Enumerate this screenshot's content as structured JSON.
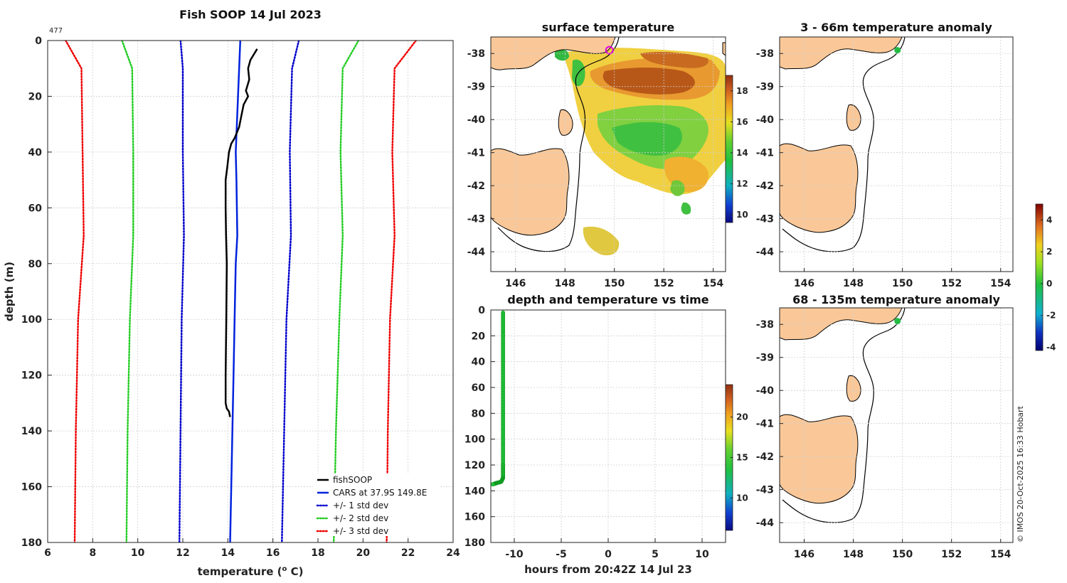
{
  "figure": {
    "credit": "© IMOS 20-Oct-2025 16:33 Hobart"
  },
  "chart_data": [
    {
      "id": "profile",
      "type": "line",
      "title": "Fish SOOP 14 Jul 2023",
      "annotation": "477",
      "xlabel": "temperature (° C)",
      "xlabel_main": "temperature (",
      "xlabel_sup": "o",
      "xlabel_end": " C)",
      "ylabel": "depth (m)",
      "xlim": [
        6,
        24
      ],
      "ylim": [
        0,
        180
      ],
      "y_reversed": true,
      "xticks": [
        "6",
        "8",
        "10",
        "12",
        "14",
        "16",
        "18",
        "20",
        "22",
        "24"
      ],
      "yticks": [
        "0",
        "20",
        "40",
        "60",
        "80",
        "100",
        "120",
        "140",
        "160",
        "180"
      ],
      "grid": true,
      "legend_position": "bottom-right",
      "series": [
        {
          "name": "fishSOOP",
          "color": "#000000",
          "style": "solid",
          "width": 2.5,
          "points": [
            [
              15.3,
              3
            ],
            [
              15.0,
              7
            ],
            [
              14.9,
              10
            ],
            [
              14.95,
              14
            ],
            [
              14.8,
              18
            ],
            [
              14.9,
              20
            ],
            [
              14.7,
              23
            ],
            [
              14.6,
              27
            ],
            [
              14.5,
              31
            ],
            [
              14.3,
              35
            ],
            [
              14.15,
              37
            ],
            [
              14.05,
              40
            ],
            [
              13.98,
              45
            ],
            [
              13.9,
              50
            ],
            [
              13.9,
              60
            ],
            [
              13.92,
              70
            ],
            [
              13.95,
              80
            ],
            [
              13.93,
              100
            ],
            [
              13.9,
              120
            ],
            [
              13.9,
              130
            ],
            [
              13.95,
              132
            ],
            [
              14.05,
              133
            ],
            [
              14.1,
              135
            ]
          ]
        },
        {
          "name": "CARS at 37.9S 149.8E",
          "color": "#0022dd",
          "style": "solid",
          "width": 2.5,
          "points": [
            [
              14.55,
              0
            ],
            [
              14.5,
              10
            ],
            [
              14.45,
              20
            ],
            [
              14.4,
              30
            ],
            [
              14.35,
              40
            ],
            [
              14.38,
              50
            ],
            [
              14.4,
              60
            ],
            [
              14.42,
              70
            ],
            [
              14.35,
              80
            ],
            [
              14.3,
              100
            ],
            [
              14.25,
              120
            ],
            [
              14.2,
              140
            ],
            [
              14.15,
              160
            ],
            [
              14.1,
              180
            ]
          ]
        },
        {
          "name": "+/- 1 std dev",
          "color": "#0000cc",
          "style": "dotted",
          "width": 2.5,
          "points": [
            [
              11.9,
              0
            ],
            [
              12.0,
              10
            ],
            [
              12.0,
              40
            ],
            [
              12.05,
              70
            ],
            [
              11.95,
              100
            ],
            [
              11.9,
              140
            ],
            [
              11.85,
              180
            ]
          ]
        },
        {
          "name": "+/- 1 std dev upper",
          "color": "#0000cc",
          "style": "dotted",
          "width": 2.5,
          "legend": false,
          "points": [
            [
              17.15,
              0
            ],
            [
              16.85,
              10
            ],
            [
              16.75,
              40
            ],
            [
              16.8,
              70
            ],
            [
              16.6,
              100
            ],
            [
              16.5,
              140
            ],
            [
              16.4,
              180
            ]
          ]
        },
        {
          "name": "+/- 2 std dev",
          "color": "#22cc22",
          "style": "dotted",
          "width": 2.5,
          "points": [
            [
              9.3,
              0
            ],
            [
              9.75,
              10
            ],
            [
              9.8,
              40
            ],
            [
              9.8,
              70
            ],
            [
              9.65,
              100
            ],
            [
              9.55,
              140
            ],
            [
              9.5,
              180
            ]
          ]
        },
        {
          "name": "+/- 2 std dev upper",
          "color": "#22cc22",
          "style": "dotted",
          "width": 2.5,
          "legend": false,
          "points": [
            [
              19.8,
              0
            ],
            [
              19.1,
              10
            ],
            [
              19.0,
              40
            ],
            [
              19.1,
              70
            ],
            [
              18.95,
              100
            ],
            [
              18.8,
              140
            ],
            [
              18.7,
              180
            ]
          ]
        },
        {
          "name": "+/- 3 std dev",
          "color": "#ee0000",
          "style": "dotted",
          "width": 2.5,
          "points": [
            [
              6.8,
              0
            ],
            [
              7.5,
              10
            ],
            [
              7.55,
              40
            ],
            [
              7.6,
              70
            ],
            [
              7.35,
              100
            ],
            [
              7.25,
              140
            ],
            [
              7.2,
              180
            ]
          ]
        },
        {
          "name": "+/- 3 std dev upper",
          "color": "#ee0000",
          "style": "dotted",
          "width": 2.5,
          "legend": false,
          "points": [
            [
              22.35,
              0
            ],
            [
              21.4,
              10
            ],
            [
              21.3,
              40
            ],
            [
              21.4,
              70
            ],
            [
              21.2,
              100
            ],
            [
              21.1,
              140
            ],
            [
              21.05,
              180
            ]
          ]
        }
      ]
    },
    {
      "id": "sst_map",
      "type": "heatmap",
      "title": "surface temperature",
      "xlim": [
        145,
        154.5
      ],
      "ylim": [
        -44.6,
        -37.5
      ],
      "xticks": [
        "146",
        "148",
        "150",
        "152",
        "154"
      ],
      "yticks": [
        "-38",
        "-39",
        "-40",
        "-41",
        "-42",
        "-43",
        "-44"
      ],
      "colorbar_range": [
        9.5,
        19
      ],
      "colorbar_ticks": [
        "10",
        "12",
        "14",
        "16",
        "18"
      ],
      "marker": {
        "lon": 149.8,
        "lat": -37.9,
        "color": "#dd00dd"
      }
    },
    {
      "id": "time_depth",
      "type": "scatter",
      "title": "depth and temperature vs time",
      "xlabel": "hours from 20:42Z 14 Jul 23",
      "xlim": [
        -12.5,
        12.5
      ],
      "ylim": [
        0,
        180
      ],
      "y_reversed": true,
      "xticks": [
        "-10",
        "-5",
        "0",
        "5",
        "10"
      ],
      "yticks": [
        "0",
        "20",
        "40",
        "60",
        "80",
        "100",
        "120",
        "140",
        "160",
        "180"
      ],
      "colorbar_range": [
        6,
        24
      ],
      "colorbar_ticks": [
        "10",
        "15",
        "20"
      ],
      "points": [
        [
          -11.2,
          2,
          15.3
        ],
        [
          -11.2,
          20,
          14.9
        ],
        [
          -11.2,
          40,
          14.0
        ],
        [
          -11.2,
          60,
          13.9
        ],
        [
          -11.2,
          80,
          13.95
        ],
        [
          -11.2,
          100,
          13.93
        ],
        [
          -11.2,
          120,
          13.9
        ],
        [
          -11.2,
          130,
          13.9
        ],
        [
          -11.4,
          133,
          14.0
        ],
        [
          -11.9,
          134,
          14.1
        ],
        [
          -12.3,
          135,
          14.1
        ]
      ]
    },
    {
      "id": "anom_upper",
      "type": "heatmap",
      "title": "3 - 66m temperature anomaly",
      "xlim": [
        145,
        154.5
      ],
      "ylim": [
        -44.6,
        -37.5
      ],
      "xticks": [
        "146",
        "148",
        "150",
        "152",
        "154"
      ],
      "yticks": [
        "-38",
        "-39",
        "-40",
        "-41",
        "-42",
        "-43",
        "-44"
      ],
      "marker": {
        "lon": 149.8,
        "lat": -37.9,
        "anomaly": 0.3
      }
    },
    {
      "id": "anom_lower",
      "type": "heatmap",
      "title": "68 - 135m temperature anomaly",
      "xlim": [
        145,
        154.5
      ],
      "ylim": [
        -44.6,
        -37.5
      ],
      "xticks": [
        "146",
        "148",
        "150",
        "152",
        "154"
      ],
      "yticks": [
        "-38",
        "-39",
        "-40",
        "-41",
        "-42",
        "-43",
        "-44"
      ],
      "marker": {
        "lon": 149.8,
        "lat": -37.9,
        "anomaly": 0.3
      }
    },
    {
      "id": "anom_colorbar",
      "type": "colorbar",
      "range": [
        -4.2,
        5
      ],
      "ticks": [
        "4",
        "2",
        "0",
        "-2",
        "-4"
      ]
    }
  ]
}
